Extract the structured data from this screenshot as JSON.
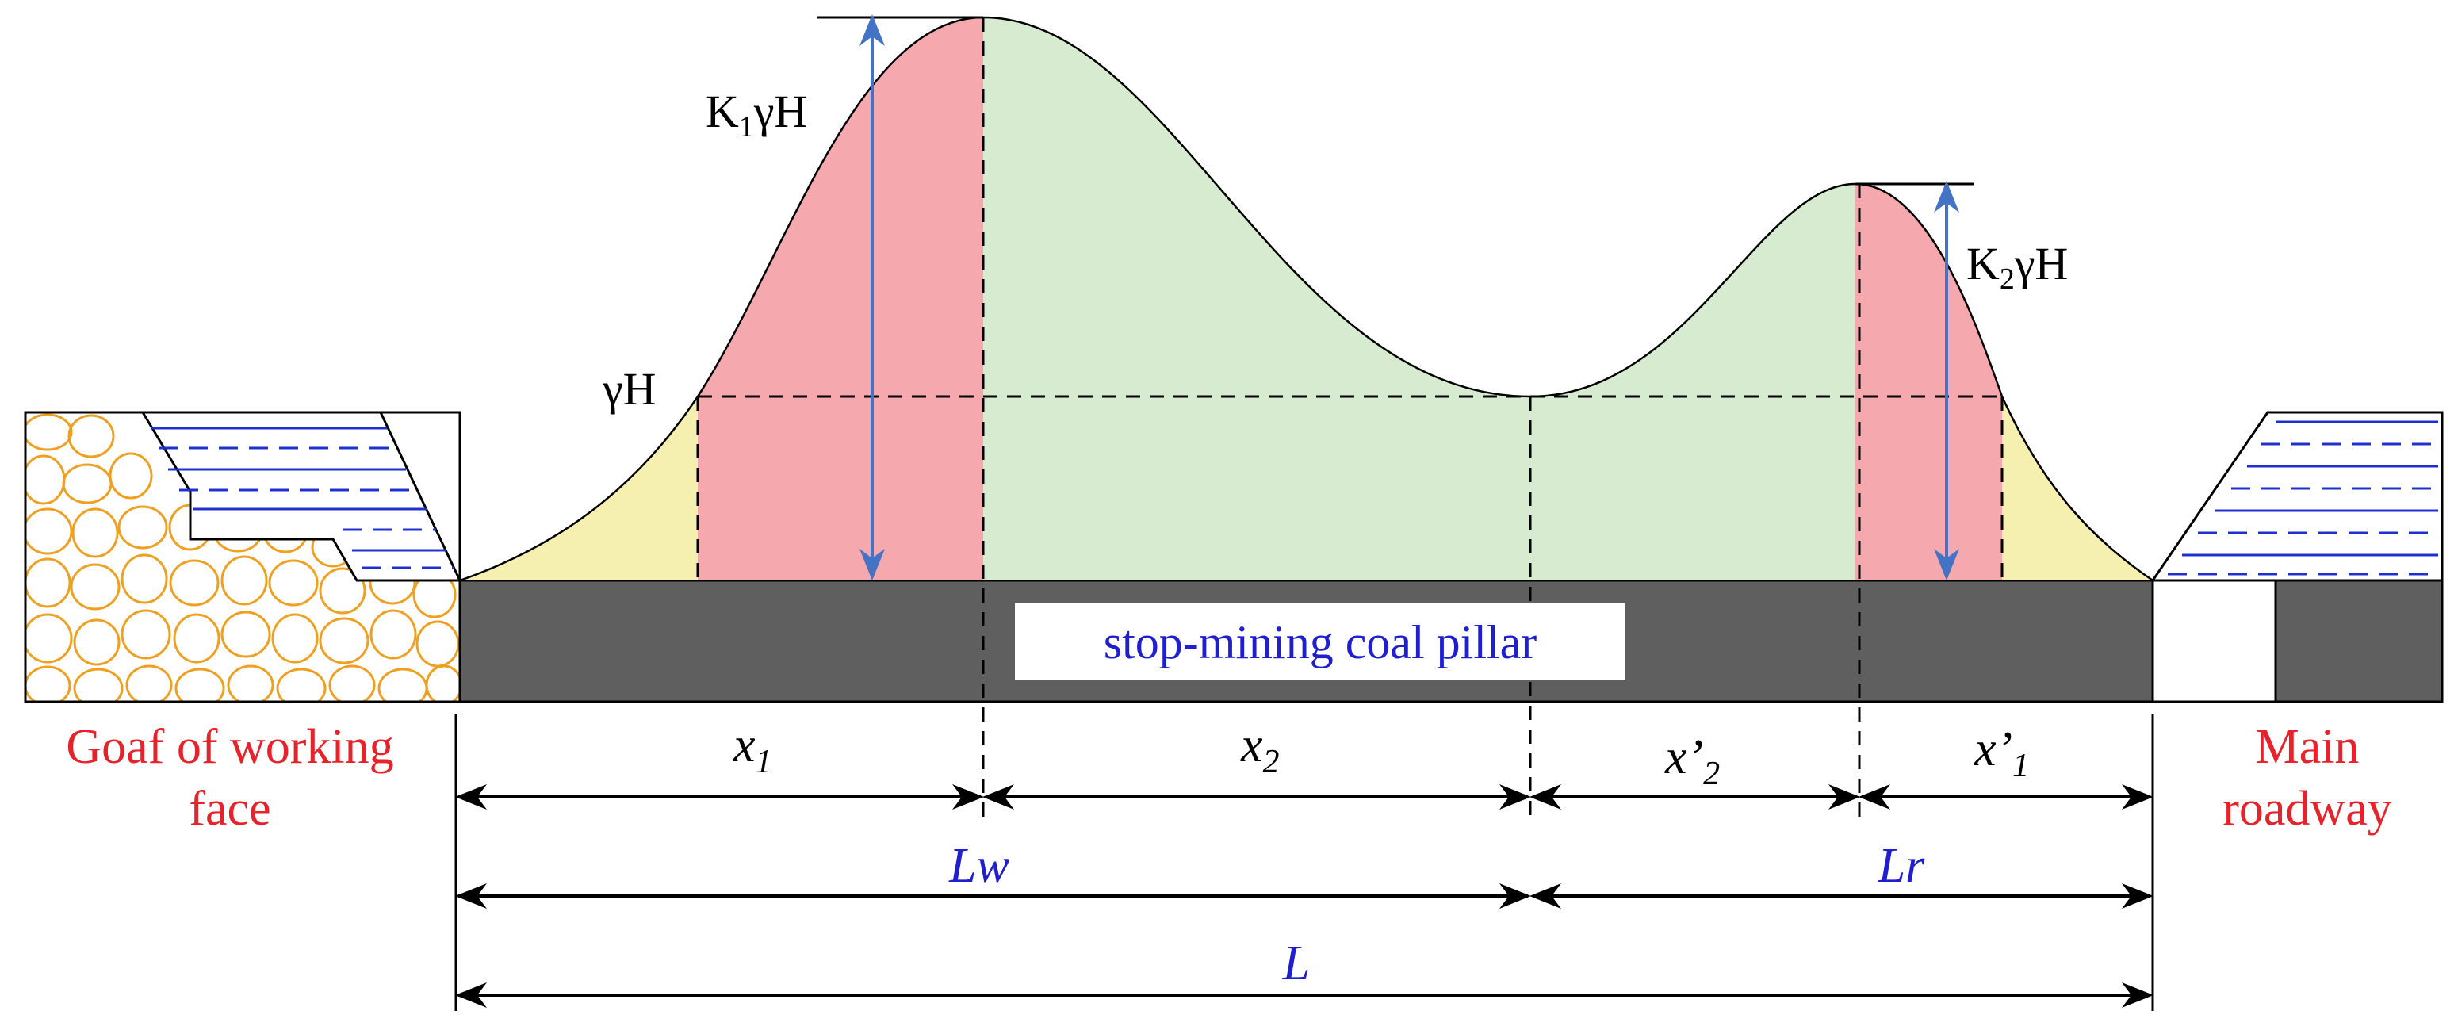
{
  "labels": {
    "k1": "K",
    "k1_sub": "1",
    "k1_rest": "γH",
    "k2": "K",
    "k2_sub": "2",
    "k2_rest": "γH",
    "gammaH": "γH",
    "pillar": "stop-mining coal pillar",
    "goaf_line1": "Goaf of working",
    "goaf_line2": "face",
    "main_line1": "Main",
    "main_line2": "roadway"
  },
  "dimensions": {
    "x1": "x",
    "x1_sub": "1",
    "x2": "x",
    "x2_sub": "2",
    "xp2": "x’",
    "xp2_sub": "2",
    "xp1": "x’",
    "xp1_sub": "1",
    "lw": "Lw",
    "lr": "Lr",
    "l": "L"
  },
  "colors": {
    "yellow_zone": "#f5f0b0",
    "red_zone": "#f5a8ad",
    "green_zone": "#d6ebcf",
    "pillar": "#5f5f5f",
    "goaf_rock": "#f0a020",
    "water_lines": "#2030d0",
    "arrow_blue": "#4472c4",
    "label_red": "#e8222a",
    "label_blue": "#1f1fd0"
  }
}
